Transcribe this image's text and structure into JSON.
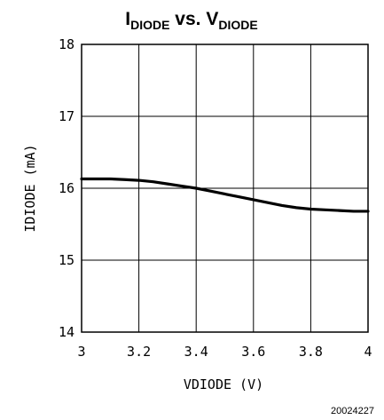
{
  "chart_data": {
    "type": "line",
    "title": {
      "part1_main": "I",
      "part1_sub": "DIODE",
      "middle": " vs. ",
      "part2_main": "V",
      "part2_sub": "DIODE"
    },
    "xlabel": "VDIODE (V)",
    "ylabel": "IDIODE (mA)",
    "xlim": [
      3,
      4
    ],
    "ylim": [
      14,
      18
    ],
    "x_ticks": [
      3,
      3.2,
      3.4,
      3.6,
      3.8,
      4
    ],
    "x_tick_labels": [
      "3",
      "3.2",
      "3.4",
      "3.6",
      "3.8",
      "4"
    ],
    "y_ticks": [
      14,
      15,
      16,
      17,
      18
    ],
    "y_tick_labels": [
      "14",
      "15",
      "16",
      "17",
      "18"
    ],
    "grid": true,
    "series": [
      {
        "x": [
          3.0,
          3.05,
          3.1,
          3.15,
          3.2,
          3.25,
          3.3,
          3.35,
          3.4,
          3.45,
          3.5,
          3.55,
          3.6,
          3.65,
          3.7,
          3.75,
          3.8,
          3.85,
          3.9,
          3.95,
          4.0
        ],
        "y": [
          16.13,
          16.13,
          16.13,
          16.12,
          16.11,
          16.09,
          16.06,
          16.03,
          16.0,
          15.96,
          15.92,
          15.88,
          15.84,
          15.8,
          15.76,
          15.73,
          15.71,
          15.7,
          15.69,
          15.68,
          15.68
        ]
      }
    ]
  },
  "figure_id": "20024227",
  "colors": {
    "line": "#000000",
    "grid": "#000000",
    "background": "#ffffff"
  }
}
